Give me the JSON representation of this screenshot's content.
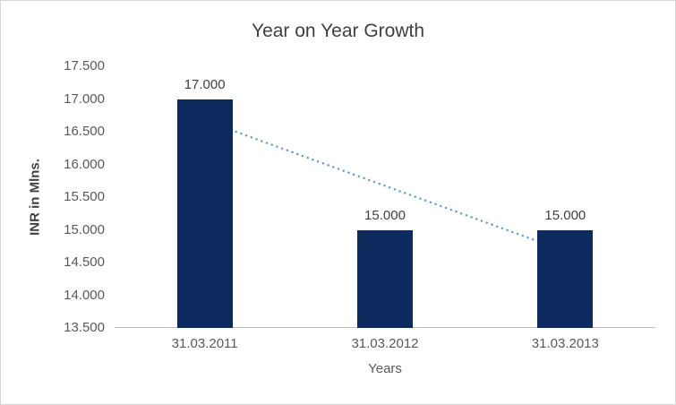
{
  "chart_data": {
    "type": "bar",
    "title": "Year on Year Growth",
    "xlabel": "Years",
    "ylabel": "INR in Mlns.",
    "categories": [
      "31.03.2011",
      "31.03.2012",
      "31.03.2013"
    ],
    "values": [
      17.0,
      15.0,
      15.0
    ],
    "data_labels": [
      "17.000",
      "15.000",
      "15.000"
    ],
    "y_ticks": [
      13.5,
      14.0,
      14.5,
      15.0,
      15.5,
      16.0,
      16.5,
      17.0,
      17.5
    ],
    "y_tick_labels": [
      "13.500",
      "14.000",
      "14.500",
      "15.000",
      "15.500",
      "16.000",
      "16.500",
      "17.000",
      "17.500"
    ],
    "ylim": [
      13.5,
      17.5
    ],
    "grid": false,
    "legend": "none",
    "bar_color": "#0d2a5e",
    "trendline": {
      "style": "dotted",
      "color": "#5b9bd5",
      "start_value": 16.667,
      "end_value": 14.667
    }
  }
}
